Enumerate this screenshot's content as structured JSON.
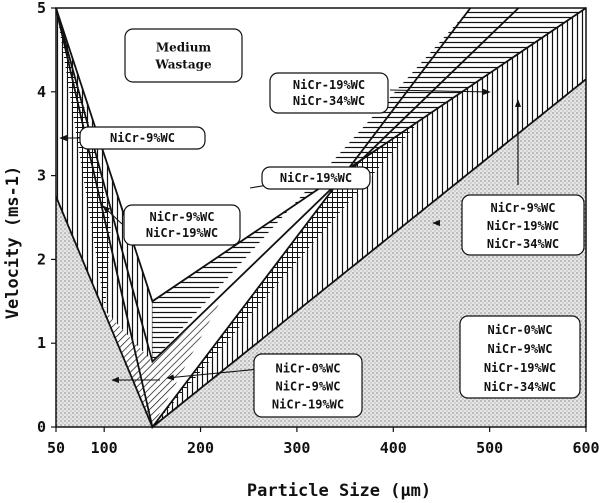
{
  "chart_data": {
    "type": "area",
    "title": "",
    "xlabel": "Particle Size (μm)",
    "ylabel": "Velocity (ms-1)",
    "xlim": [
      50,
      600
    ],
    "ylim": [
      0,
      5
    ],
    "xticks": [
      "50",
      "100",
      "200",
      "300",
      "400",
      "500",
      "600"
    ],
    "yticks": [
      "0",
      "1",
      "2",
      "3",
      "4",
      "5"
    ],
    "xtick_values": [
      50,
      100,
      200,
      300,
      400,
      500,
      600
    ],
    "ytick_values": [
      0,
      1,
      2,
      3,
      4,
      5
    ],
    "boundaries": [
      {
        "name": "NiCr-0%WC",
        "x": [
          50,
          150,
          600
        ],
        "y": [
          5.0,
          1.5,
          5.0
        ]
      },
      {
        "name": "NiCr-9%WC",
        "x": [
          50,
          150,
          530
        ],
        "y": [
          5.0,
          0.78,
          5.0
        ]
      },
      {
        "name": "NiCr-19%WC",
        "x": [
          50,
          150,
          480
        ],
        "y": [
          5.0,
          0.0,
          5.0
        ]
      },
      {
        "name": "NiCr-34%WC",
        "x": [
          50,
          150,
          600
        ],
        "y": [
          2.75,
          0.0,
          4.15
        ]
      }
    ],
    "regions": [
      {
        "label": "Medium Wastage",
        "pattern": "blank"
      },
      {
        "label": "NiCr-19%WC NiCr-34%WC",
        "pattern": "horizontal-hatch"
      },
      {
        "label": "NiCr-9%WC",
        "pattern": "vertical-hatch"
      },
      {
        "label": "NiCr-19%WC",
        "pattern": "cross-hatch"
      },
      {
        "label": "NiCr-9%WC NiCr-19%WC",
        "pattern": "cross-hatch"
      },
      {
        "label": "NiCr-9%WC NiCr-19%WC NiCr-34%WC",
        "pattern": "vertical-hatch"
      },
      {
        "label": "NiCr-0%WC NiCr-9%WC NiCr-19%WC",
        "pattern": "diagonal-hatch"
      },
      {
        "label": "NiCr-0%WC NiCr-9%WC NiCr-19%WC NiCr-34%WC",
        "pattern": "stipple"
      }
    ],
    "annotations": {
      "medium": [
        "Medium",
        "Wastage"
      ],
      "upper_right": [
        "NiCr-19%WC",
        "NiCr-34%WC"
      ],
      "left_9": [
        "NiCr-9%WC"
      ],
      "mid_19": [
        "NiCr-19%WC"
      ],
      "left_9_19": [
        "NiCr-9%WC",
        "NiCr-19%WC"
      ],
      "right_9_19_34": [
        "NiCr-9%WC",
        "NiCr-19%WC",
        "NiCr-34%WC"
      ],
      "bottom_0_9_19": [
        "NiCr-0%WC",
        "NiCr-9%WC",
        "NiCr-19%WC"
      ],
      "bottom_right_all": [
        "NiCr-0%WC",
        "NiCr-9%WC",
        "NiCr-19%WC",
        "NiCr-34%WC"
      ]
    },
    "grid": false,
    "legend": "none"
  }
}
